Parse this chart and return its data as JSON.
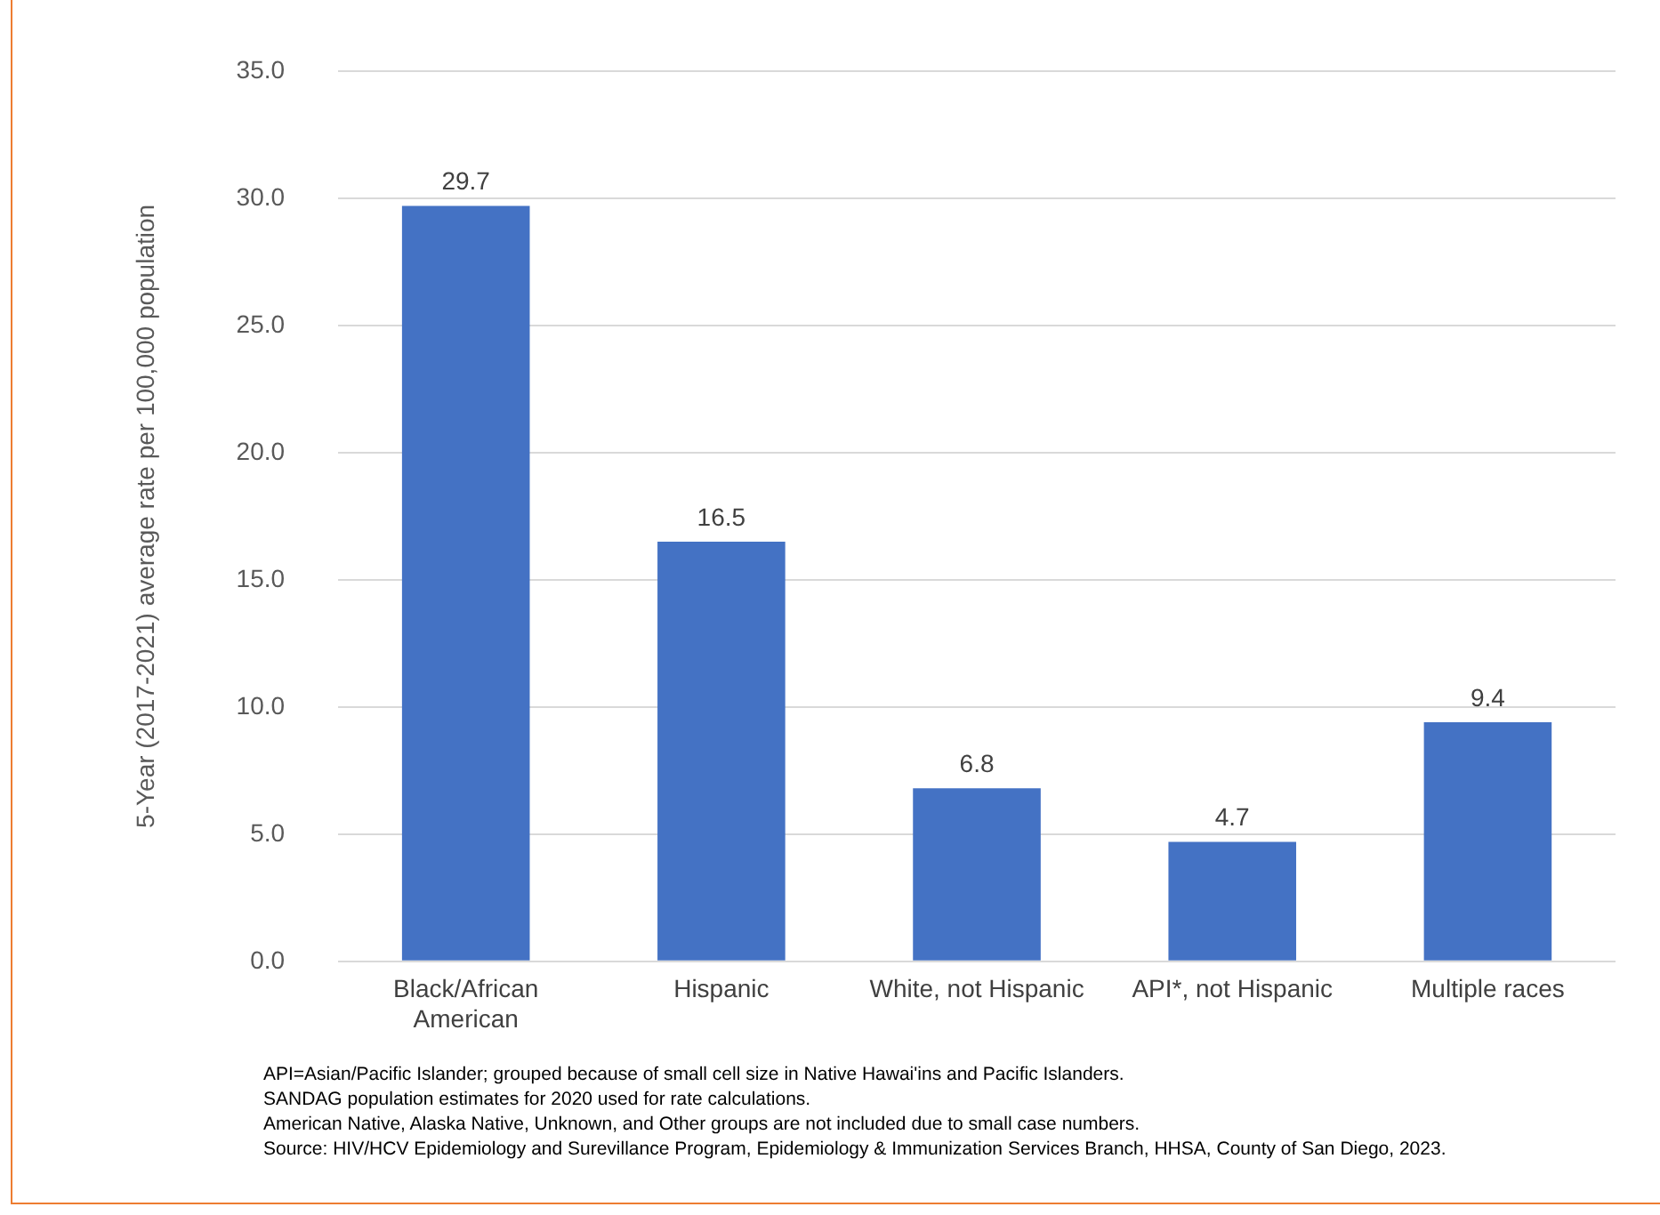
{
  "chart_data": {
    "type": "bar",
    "categories": [
      "Black/African American",
      "Hispanic",
      "White, not Hispanic",
      "API*, not Hispanic",
      "Multiple races"
    ],
    "values": [
      29.7,
      16.5,
      6.8,
      4.7,
      9.4
    ],
    "color": "#4472c4",
    "ylabel": "5-Year (2017-2021) average rate per 100,000 population",
    "ylim": [
      0,
      35
    ],
    "yticks": [
      {
        "value": 0,
        "label": "0.0"
      },
      {
        "value": 5,
        "label": "5.0"
      },
      {
        "value": 10,
        "label": "10.0"
      },
      {
        "value": 15,
        "label": "15.0"
      },
      {
        "value": 20,
        "label": "20.0"
      },
      {
        "value": 25,
        "label": "25.0"
      },
      {
        "value": 30,
        "label": "30.0"
      },
      {
        "value": 35,
        "label": "35.0"
      }
    ],
    "grid": "y",
    "data_labels": true,
    "annotations": [
      "API=Asian/Pacific Islander; grouped because of small cell size in Native Hawai'ins and Pacific Islanders.",
      "SANDAG population estimates for 2020 used for rate calculations.",
      "American Native, Alaska Native, Unknown, and Other groups are not included due to small case numbers.",
      "Source: HIV/HCV Epidemiology and Surevillance Program, Epidemiology & Immunization Services Branch, HHSA, County of San Diego, 2023."
    ]
  }
}
